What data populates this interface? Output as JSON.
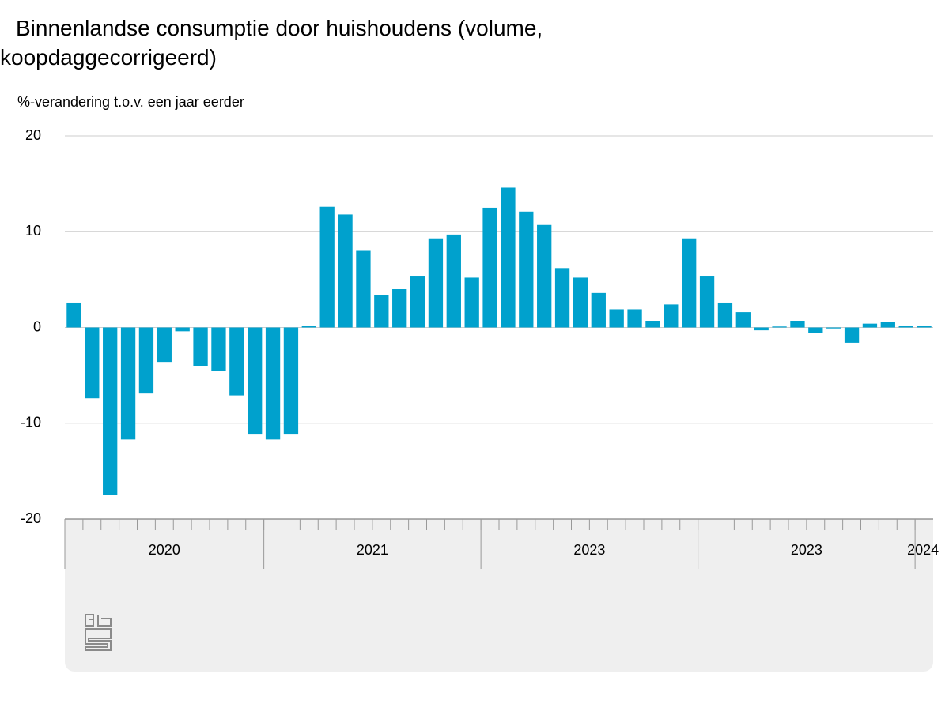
{
  "chart_data": {
    "type": "bar",
    "title": "Binnenlandse consumptie door huishoudens (volume, koopdaggecorrigeerd)",
    "y_axis_label": "%-verandering t.o.v. een jaar eerder",
    "categories": [
      null,
      null,
      null,
      null,
      null,
      null,
      null,
      null,
      null,
      null,
      null,
      null,
      null,
      null,
      null,
      null,
      null,
      null,
      null,
      null,
      null,
      null,
      null,
      null,
      null,
      null,
      null,
      null,
      null,
      null,
      null,
      null,
      null,
      null,
      null,
      null,
      null,
      null,
      null,
      null,
      null,
      null,
      null,
      null,
      null,
      null,
      null,
      null
    ],
    "year_labels": [
      "2020",
      "2021",
      "2023",
      "2023",
      "2024"
    ],
    "values": [
      2.6,
      -7.4,
      -17.5,
      -11.7,
      -6.9,
      -3.6,
      -0.4,
      -4.0,
      -4.5,
      -7.1,
      -11.1,
      -11.7,
      -11.1,
      0.2,
      12.6,
      11.8,
      8.0,
      3.4,
      4.0,
      5.4,
      9.3,
      9.7,
      5.2,
      12.5,
      14.6,
      12.1,
      10.7,
      6.2,
      5.2,
      3.6,
      1.9,
      1.9,
      0.7,
      2.4,
      9.3,
      5.4,
      2.6,
      1.6,
      -0.3,
      0.1,
      0.7,
      -0.6,
      -0.1,
      -1.6,
      0.4,
      0.6,
      0.2,
      0.2
    ],
    "color": "#00a1cd",
    "ylim": [
      -20,
      20
    ],
    "yticks": [
      -20,
      -10,
      0,
      10,
      20
    ],
    "grid": true
  }
}
